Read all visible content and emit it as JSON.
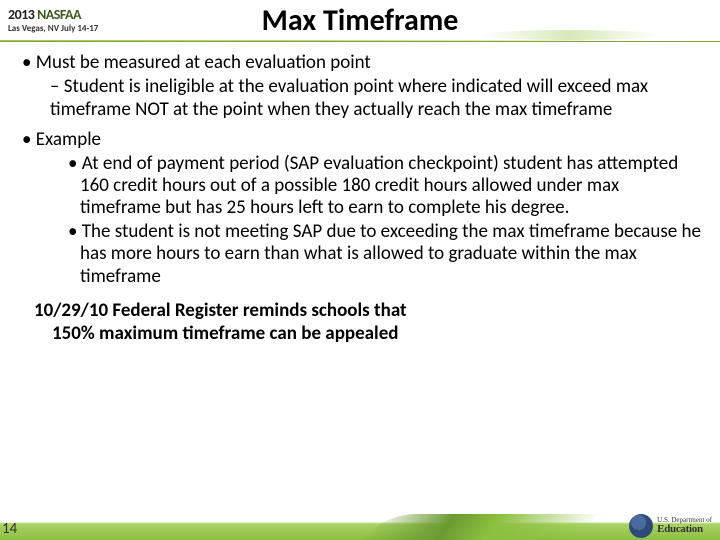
{
  "header": {
    "conf_year_prefix": "2013",
    "conf_year_name": "NASFAA",
    "conf_location": "Las Vegas, NV July 14-17",
    "title": "Max Timeframe"
  },
  "bullets": {
    "b1": "Must be measured at each evaluation point",
    "b1a": "Student is ineligible at the evaluation point where indicated will exceed max timeframe NOT at the point when they actually reach the max timeframe",
    "b2": "Example",
    "b2a": "At end of payment period (SAP evaluation checkpoint) student has attempted 160 credit hours out of a possible 180 credit hours allowed under max timeframe but has 25 hours left to earn to complete his degree.",
    "b2b": "The student is not meeting SAP due to exceeding the max timeframe because he has more hours to earn than what is allowed to graduate within the max timeframe"
  },
  "highlight": {
    "line1": "10/29/10 Federal Register reminds schools that",
    "line2": "150% maximum timeframe can be appealed"
  },
  "footer": {
    "slide_number": "14",
    "edu_top": "U.S. Department of",
    "edu_bottom": "Education"
  },
  "colors": {
    "accent_green": "#8bbf3f",
    "dark_green": "#3b5c1f"
  }
}
